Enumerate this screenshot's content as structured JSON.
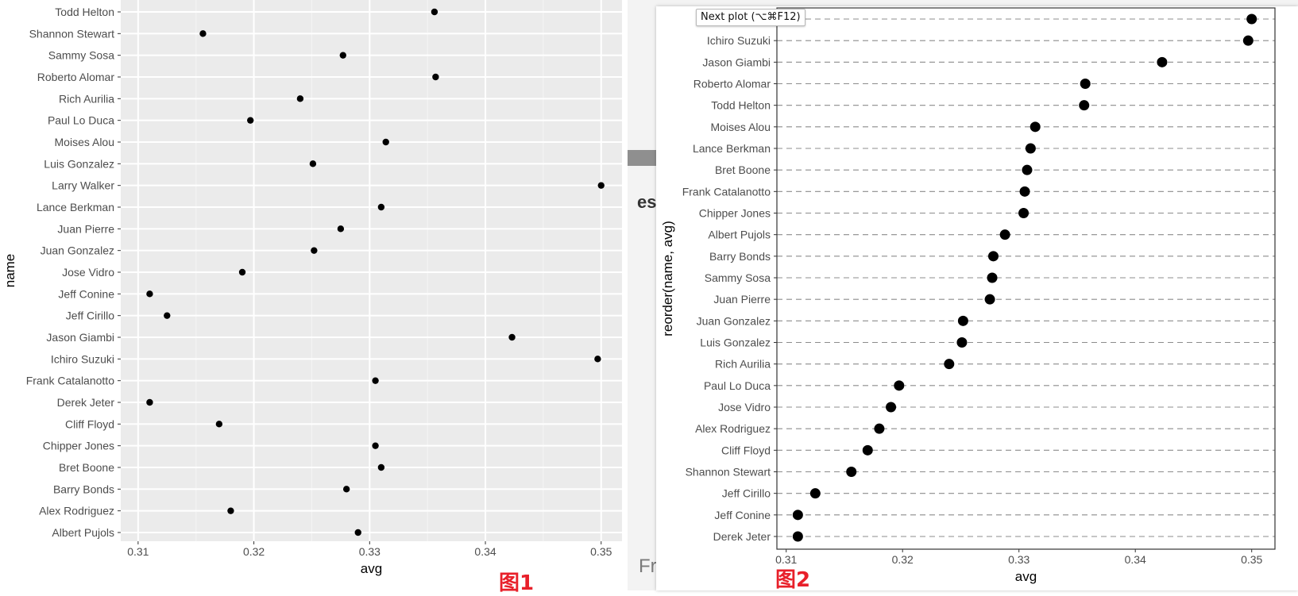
{
  "chart_data": [
    {
      "type": "scatter",
      "xlabel": "avg",
      "ylabel": "name",
      "xlim": [
        0.3085,
        0.3518
      ],
      "x_ticks": [
        0.31,
        0.32,
        0.33,
        0.34,
        0.35
      ],
      "x_tick_labels": [
        "0.31",
        "0.32",
        "0.33",
        "0.34",
        "0.35"
      ],
      "grid": true,
      "theme": "grey",
      "point_color": "#000000",
      "categories": [
        "Albert Pujols",
        "Alex Rodriguez",
        "Barry Bonds",
        "Bret Boone",
        "Chipper Jones",
        "Cliff Floyd",
        "Derek Jeter",
        "Frank Catalanotto",
        "Ichiro Suzuki",
        "Jason Giambi",
        "Jeff Cirillo",
        "Jeff Conine",
        "Jose Vidro",
        "Juan Gonzalez",
        "Juan Pierre",
        "Lance Berkman",
        "Larry Walker",
        "Luis Gonzalez",
        "Moises Alou",
        "Paul Lo Duca",
        "Rich Aurilia",
        "Roberto Alomar",
        "Sammy Sosa",
        "Shannon Stewart",
        "Todd Helton"
      ],
      "values": [
        0.329,
        0.318,
        0.328,
        0.331,
        0.3305,
        0.317,
        0.311,
        0.3305,
        0.3497,
        0.3423,
        0.3125,
        0.311,
        0.319,
        0.3252,
        0.3275,
        0.331,
        0.35,
        0.3251,
        0.3314,
        0.3197,
        0.324,
        0.3357,
        0.3277,
        0.3156,
        0.3356
      ]
    },
    {
      "type": "scatter",
      "xlabel": "avg",
      "ylabel": "reorder(name, avg)",
      "xlim": [
        0.3092,
        0.352
      ],
      "x_ticks": [
        0.31,
        0.32,
        0.33,
        0.34,
        0.35
      ],
      "x_tick_labels": [
        "0.31",
        "0.32",
        "0.33",
        "0.34",
        "0.35"
      ],
      "grid": "dashed horizontal",
      "theme": "bw",
      "point_color": "#000000",
      "categories": [
        "Larry Walker",
        "Ichiro Suzuki",
        "Jason Giambi",
        "Roberto Alomar",
        "Todd Helton",
        "Moises Alou",
        "Lance Berkman",
        "Bret Boone",
        "Frank Catalanotto",
        "Chipper Jones",
        "Albert Pujols",
        "Barry Bonds",
        "Sammy Sosa",
        "Juan Pierre",
        "Juan Gonzalez",
        "Luis Gonzalez",
        "Rich Aurilia",
        "Paul Lo Duca",
        "Jose Vidro",
        "Alex Rodriguez",
        "Cliff Floyd",
        "Shannon Stewart",
        "Jeff Cirillo",
        "Jeff Conine",
        "Derek Jeter"
      ],
      "values": [
        0.35,
        0.3497,
        0.3423,
        0.3357,
        0.3356,
        0.3314,
        0.331,
        0.3307,
        0.3305,
        0.3304,
        0.3288,
        0.3278,
        0.3277,
        0.3275,
        0.3252,
        0.3251,
        0.324,
        0.3197,
        0.319,
        0.318,
        0.317,
        0.3156,
        0.3125,
        0.311,
        0.311
      ]
    }
  ],
  "captions": {
    "fig1": "图1",
    "fig2": "图2"
  },
  "tooltip": {
    "text": "Next plot (⌥⌘F12)"
  },
  "background_fragments": {
    "es": "es",
    "fr": "Fr"
  }
}
